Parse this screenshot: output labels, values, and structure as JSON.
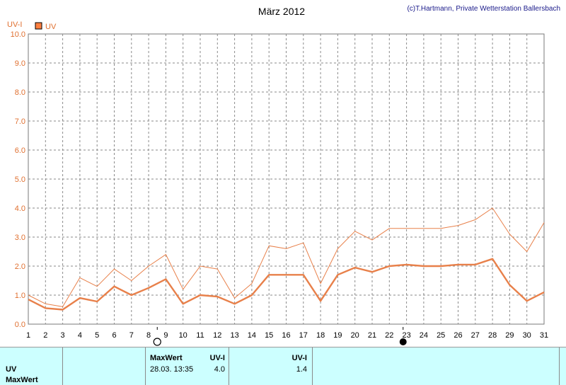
{
  "chart_data": {
    "type": "line",
    "title": "März 2012",
    "credit": "(c)T.Hartmann, Private Wetterstation Ballersbach",
    "ylabel": "UV-I",
    "ylim": [
      0,
      10
    ],
    "yticks": [
      "0.0",
      "1.0",
      "2.0",
      "3.0",
      "4.0",
      "5.0",
      "6.0",
      "7.0",
      "8.0",
      "9.0",
      "10.0"
    ],
    "x": [
      1,
      2,
      3,
      4,
      5,
      6,
      7,
      8,
      9,
      10,
      11,
      12,
      13,
      14,
      15,
      16,
      17,
      18,
      19,
      20,
      21,
      22,
      23,
      24,
      25,
      26,
      27,
      28,
      29,
      30,
      31
    ],
    "legend": [
      {
        "name": "UV",
        "color": "#ff7f3f"
      }
    ],
    "series": [
      {
        "name": "UV",
        "color": "#e8804a",
        "values": [
          1.0,
          0.7,
          0.6,
          1.6,
          1.3,
          1.9,
          1.5,
          2.0,
          2.4,
          1.2,
          2.0,
          1.9,
          0.9,
          1.4,
          2.7,
          2.6,
          2.8,
          1.4,
          2.6,
          3.2,
          2.9,
          3.3,
          3.3,
          3.3,
          3.3,
          3.4,
          3.6,
          4.0,
          3.1,
          2.5,
          3.5
        ]
      },
      {
        "name": "UV",
        "color": "#e8804a",
        "values": [
          0.85,
          0.55,
          0.5,
          0.9,
          0.78,
          1.3,
          1.0,
          1.25,
          1.55,
          0.7,
          1.0,
          0.95,
          0.7,
          1.0,
          1.7,
          1.7,
          1.7,
          0.8,
          1.7,
          1.95,
          1.8,
          2.0,
          2.05,
          2.0,
          2.0,
          2.05,
          2.05,
          2.25,
          1.35,
          0.8,
          1.1
        ]
      }
    ],
    "moon_phases": [
      {
        "day": 8.5,
        "phase": "full"
      },
      {
        "day": 22.8,
        "phase": "new"
      }
    ],
    "grid": true
  },
  "panel": {
    "row1_label": "UV",
    "row2_label": "MaxWert",
    "max_header": "MaxWert",
    "unit_header_1": "UV-I",
    "unit_header_2": "UV-I",
    "max_date": "28.03.  13:35",
    "max_value": "4.0",
    "avg_value": "1.4"
  }
}
